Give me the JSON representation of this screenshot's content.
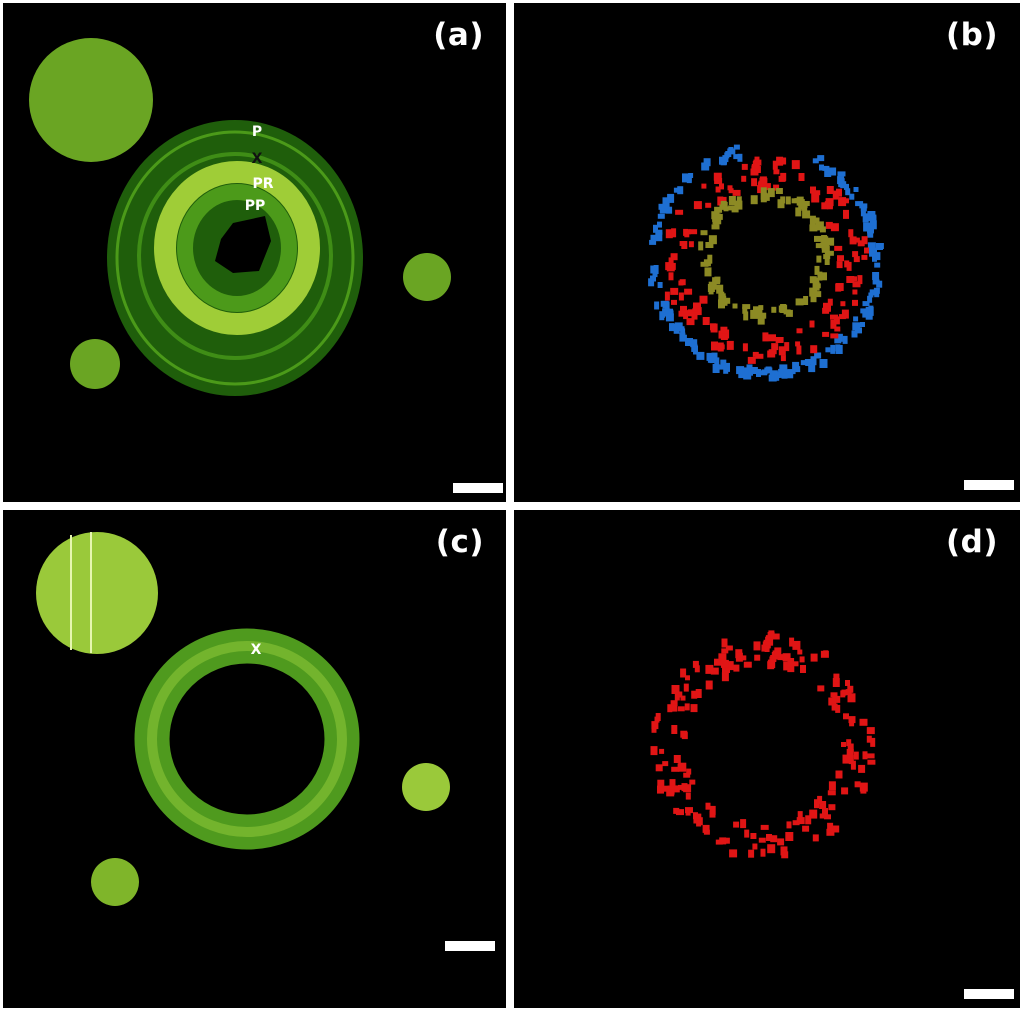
{
  "panels": [
    {
      "id": "a",
      "label": "(a)",
      "annotations": [
        "P",
        "X",
        "PR",
        "PP"
      ]
    },
    {
      "id": "b",
      "label": "(b)",
      "annotations": []
    },
    {
      "id": "c",
      "label": "(c)",
      "annotations": [
        "X"
      ]
    },
    {
      "id": "d",
      "label": "(d)",
      "annotations": []
    }
  ],
  "colors": {
    "background": "#000000",
    "divider": "#ffffff",
    "tissue_dark": "#2a6f0c",
    "tissue_light": "#b7e23c",
    "reference_disk": "#7fb52a",
    "cluster_blue": "#1e6fd2",
    "cluster_red": "#e01515",
    "cluster_olive": "#8c8a24"
  }
}
